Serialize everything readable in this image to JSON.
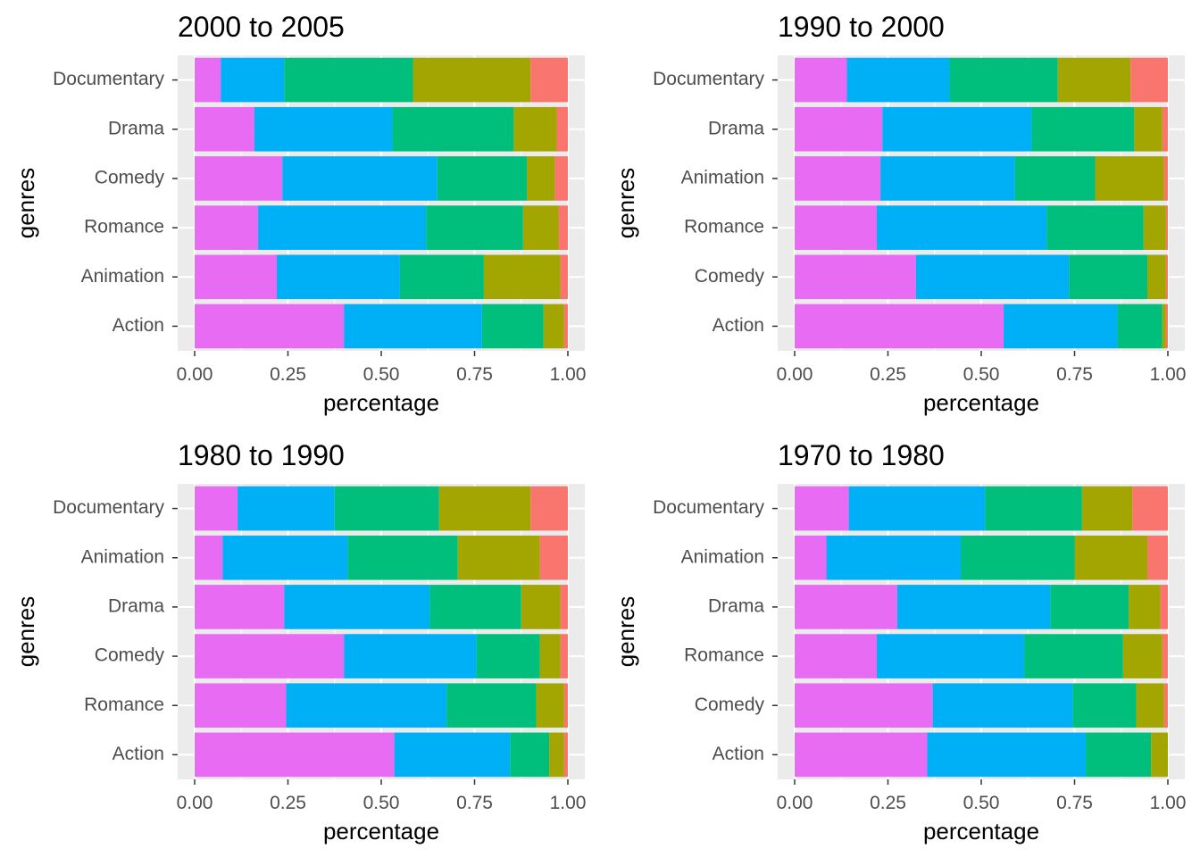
{
  "chart_data": [
    {
      "type": "bar",
      "orientation": "horizontal",
      "stacked": true,
      "title": "2000 to 2005",
      "xlabel": "percentage",
      "ylabel": "genres",
      "xlim": [
        0,
        1
      ],
      "xticks": [
        "0.00",
        "0.25",
        "0.50",
        "0.75",
        "1.00"
      ],
      "legend": "none",
      "grid": true,
      "categories": [
        "Documentary",
        "Drama",
        "Comedy",
        "Romance",
        "Animation",
        "Action"
      ],
      "series": [
        {
          "color": "#E76BF3",
          "values": [
            0.07,
            0.16,
            0.235,
            0.17,
            0.22,
            0.4
          ]
        },
        {
          "color": "#00B0F6",
          "values": [
            0.17,
            0.37,
            0.415,
            0.45,
            0.33,
            0.37
          ]
        },
        {
          "color": "#00BF7D",
          "values": [
            0.345,
            0.325,
            0.24,
            0.26,
            0.225,
            0.165
          ]
        },
        {
          "color": "#A3A500",
          "values": [
            0.315,
            0.115,
            0.075,
            0.095,
            0.205,
            0.055
          ]
        },
        {
          "color": "#F8766D",
          "values": [
            0.1,
            0.03,
            0.035,
            0.025,
            0.02,
            0.01
          ]
        }
      ]
    },
    {
      "type": "bar",
      "orientation": "horizontal",
      "stacked": true,
      "title": "1990 to 2000",
      "xlabel": "percentage",
      "ylabel": "genres",
      "xlim": [
        0,
        1
      ],
      "xticks": [
        "0.00",
        "0.25",
        "0.50",
        "0.75",
        "1.00"
      ],
      "legend": "none",
      "grid": true,
      "categories": [
        "Documentary",
        "Drama",
        "Animation",
        "Romance",
        "Comedy",
        "Action"
      ],
      "series": [
        {
          "color": "#E76BF3",
          "values": [
            0.14,
            0.235,
            0.23,
            0.22,
            0.325,
            0.56
          ]
        },
        {
          "color": "#00B0F6",
          "values": [
            0.275,
            0.4,
            0.36,
            0.455,
            0.41,
            0.305
          ]
        },
        {
          "color": "#00BF7D",
          "values": [
            0.29,
            0.275,
            0.215,
            0.26,
            0.21,
            0.12
          ]
        },
        {
          "color": "#A3A500",
          "values": [
            0.195,
            0.075,
            0.185,
            0.06,
            0.05,
            0.01
          ]
        },
        {
          "color": "#F8766D",
          "values": [
            0.1,
            0.015,
            0.01,
            0.005,
            0.005,
            0.005
          ]
        }
      ]
    },
    {
      "type": "bar",
      "orientation": "horizontal",
      "stacked": true,
      "title": "1980 to 1990",
      "xlabel": "percentage",
      "ylabel": "genres",
      "xlim": [
        0,
        1
      ],
      "xticks": [
        "0.00",
        "0.25",
        "0.50",
        "0.75",
        "1.00"
      ],
      "legend": "none",
      "grid": true,
      "categories": [
        "Documentary",
        "Animation",
        "Drama",
        "Comedy",
        "Romance",
        "Action"
      ],
      "series": [
        {
          "color": "#E76BF3",
          "values": [
            0.115,
            0.075,
            0.24,
            0.4,
            0.245,
            0.535
          ]
        },
        {
          "color": "#00B0F6",
          "values": [
            0.26,
            0.335,
            0.39,
            0.355,
            0.43,
            0.31
          ]
        },
        {
          "color": "#00BF7D",
          "values": [
            0.28,
            0.295,
            0.245,
            0.17,
            0.24,
            0.105
          ]
        },
        {
          "color": "#A3A500",
          "values": [
            0.245,
            0.22,
            0.105,
            0.055,
            0.075,
            0.04
          ]
        },
        {
          "color": "#F8766D",
          "values": [
            0.1,
            0.075,
            0.02,
            0.02,
            0.01,
            0.01
          ]
        }
      ]
    },
    {
      "type": "bar",
      "orientation": "horizontal",
      "stacked": true,
      "title": "1970 to 1980",
      "xlabel": "percentage",
      "ylabel": "genres",
      "xlim": [
        0,
        1
      ],
      "xticks": [
        "0.00",
        "0.25",
        "0.50",
        "0.75",
        "1.00"
      ],
      "legend": "none",
      "grid": true,
      "categories": [
        "Documentary",
        "Animation",
        "Drama",
        "Romance",
        "Comedy",
        "Action"
      ],
      "series": [
        {
          "color": "#E76BF3",
          "values": [
            0.145,
            0.085,
            0.275,
            0.22,
            0.37,
            0.355
          ]
        },
        {
          "color": "#00B0F6",
          "values": [
            0.365,
            0.36,
            0.41,
            0.395,
            0.375,
            0.425
          ]
        },
        {
          "color": "#00BF7D",
          "values": [
            0.26,
            0.305,
            0.21,
            0.265,
            0.17,
            0.175
          ]
        },
        {
          "color": "#A3A500",
          "values": [
            0.135,
            0.195,
            0.085,
            0.105,
            0.075,
            0.045
          ]
        },
        {
          "color": "#F8766D",
          "values": [
            0.095,
            0.055,
            0.02,
            0.015,
            0.01,
            0.0
          ]
        }
      ]
    }
  ]
}
